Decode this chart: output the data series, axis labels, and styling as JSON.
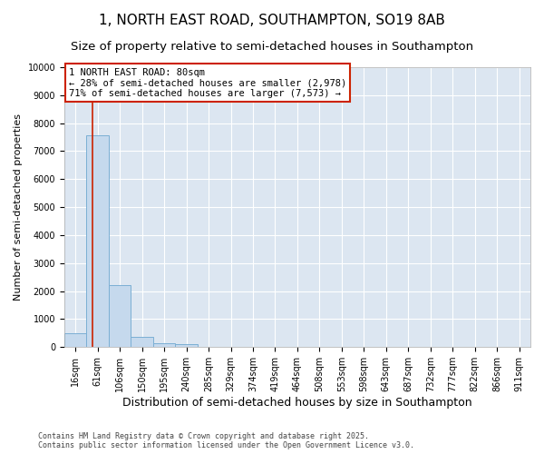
{
  "title": "1, NORTH EAST ROAD, SOUTHAMPTON, SO19 8AB",
  "subtitle": "Size of property relative to semi-detached houses in Southampton",
  "xlabel": "Distribution of semi-detached houses by size in Southampton",
  "ylabel": "Number of semi-detached properties",
  "categories": [
    "16sqm",
    "61sqm",
    "106sqm",
    "150sqm",
    "195sqm",
    "240sqm",
    "285sqm",
    "329sqm",
    "374sqm",
    "419sqm",
    "464sqm",
    "508sqm",
    "553sqm",
    "598sqm",
    "643sqm",
    "687sqm",
    "732sqm",
    "777sqm",
    "822sqm",
    "866sqm",
    "911sqm"
  ],
  "values": [
    500,
    7570,
    2200,
    380,
    130,
    105,
    0,
    0,
    0,
    0,
    0,
    0,
    0,
    0,
    0,
    0,
    0,
    0,
    0,
    0,
    0
  ],
  "bar_color": "#c5d9ed",
  "bar_edge_color": "#7bafd4",
  "background_color": "#ffffff",
  "plot_bg_color": "#dce6f1",
  "grid_color": "#ffffff",
  "annotation_line1": "1 NORTH EAST ROAD: 80sqm",
  "annotation_line2": "← 28% of semi-detached houses are smaller (2,978)",
  "annotation_line3": "71% of semi-detached houses are larger (7,573) →",
  "annotation_box_color": "#ffffff",
  "annotation_border_color": "#cc2200",
  "red_line_x": 0.75,
  "ylim": [
    0,
    10000
  ],
  "yticks": [
    0,
    1000,
    2000,
    3000,
    4000,
    5000,
    6000,
    7000,
    8000,
    9000,
    10000
  ],
  "footer": "Contains HM Land Registry data © Crown copyright and database right 2025.\nContains public sector information licensed under the Open Government Licence v3.0.",
  "title_fontsize": 11,
  "subtitle_fontsize": 9.5,
  "xlabel_fontsize": 9,
  "ylabel_fontsize": 8,
  "tick_fontsize": 7,
  "footer_fontsize": 6,
  "annot_fontsize": 7.5
}
